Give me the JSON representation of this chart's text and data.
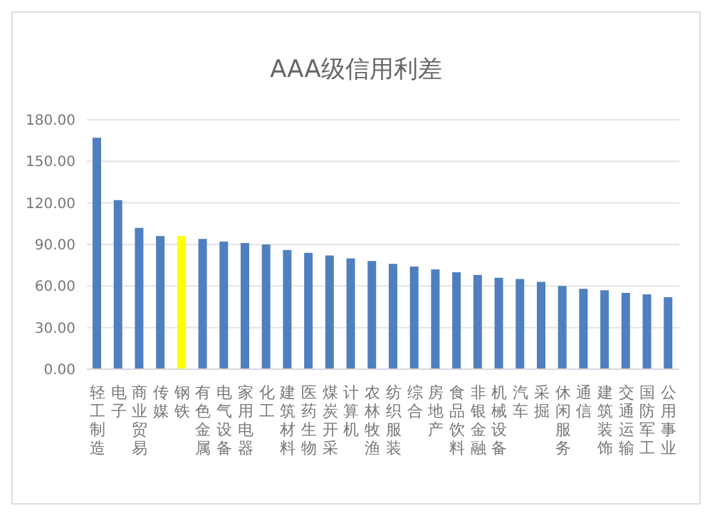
{
  "chart_data": {
    "type": "bar",
    "title": "AAA级信用利差",
    "categories": [
      "轻工制造",
      "电子",
      "商业贸易",
      "传媒",
      "钢铁",
      "有色金属",
      "电气设备",
      "家用电器",
      "化工",
      "建筑材料",
      "医药生物",
      "煤炭开采",
      "计算机",
      "农林牧渔",
      "纺织服装",
      "综合",
      "房地产",
      "食品饮料",
      "非银金融",
      "机械设备",
      "汽车",
      "采掘",
      "休闲服务",
      "通信",
      "建筑装饰",
      "交通运输",
      "国防军工",
      "公用事业"
    ],
    "values": [
      167,
      122,
      102,
      96,
      96,
      94,
      92,
      91,
      90,
      86,
      84,
      82,
      80,
      78,
      76,
      74,
      72,
      70,
      68,
      66,
      65,
      63,
      60,
      58,
      57,
      55,
      54,
      52
    ],
    "colors": [
      "#4f7fbf",
      "#4f7fbf",
      "#4f7fbf",
      "#4f7fbf",
      "#ffff00",
      "#4f7fbf",
      "#4f7fbf",
      "#4f7fbf",
      "#4f7fbf",
      "#4f7fbf",
      "#4f7fbf",
      "#4f7fbf",
      "#4f7fbf",
      "#4f7fbf",
      "#4f7fbf",
      "#4f7fbf",
      "#4f7fbf",
      "#4f7fbf",
      "#4f7fbf",
      "#4f7fbf",
      "#4f7fbf",
      "#4f7fbf",
      "#4f7fbf",
      "#4f7fbf",
      "#4f7fbf",
      "#4f7fbf",
      "#4f7fbf",
      "#4f7fbf"
    ],
    "ylim": [
      0,
      180
    ],
    "yticks": [
      {
        "value": 0,
        "label": "0.00"
      },
      {
        "value": 30,
        "label": "30.00"
      },
      {
        "value": 60,
        "label": "60.00"
      },
      {
        "value": 90,
        "label": "90.00"
      },
      {
        "value": 120,
        "label": "120.00"
      },
      {
        "value": 150,
        "label": "150.00"
      },
      {
        "value": 180,
        "label": "180.00"
      }
    ],
    "grid": "y"
  }
}
